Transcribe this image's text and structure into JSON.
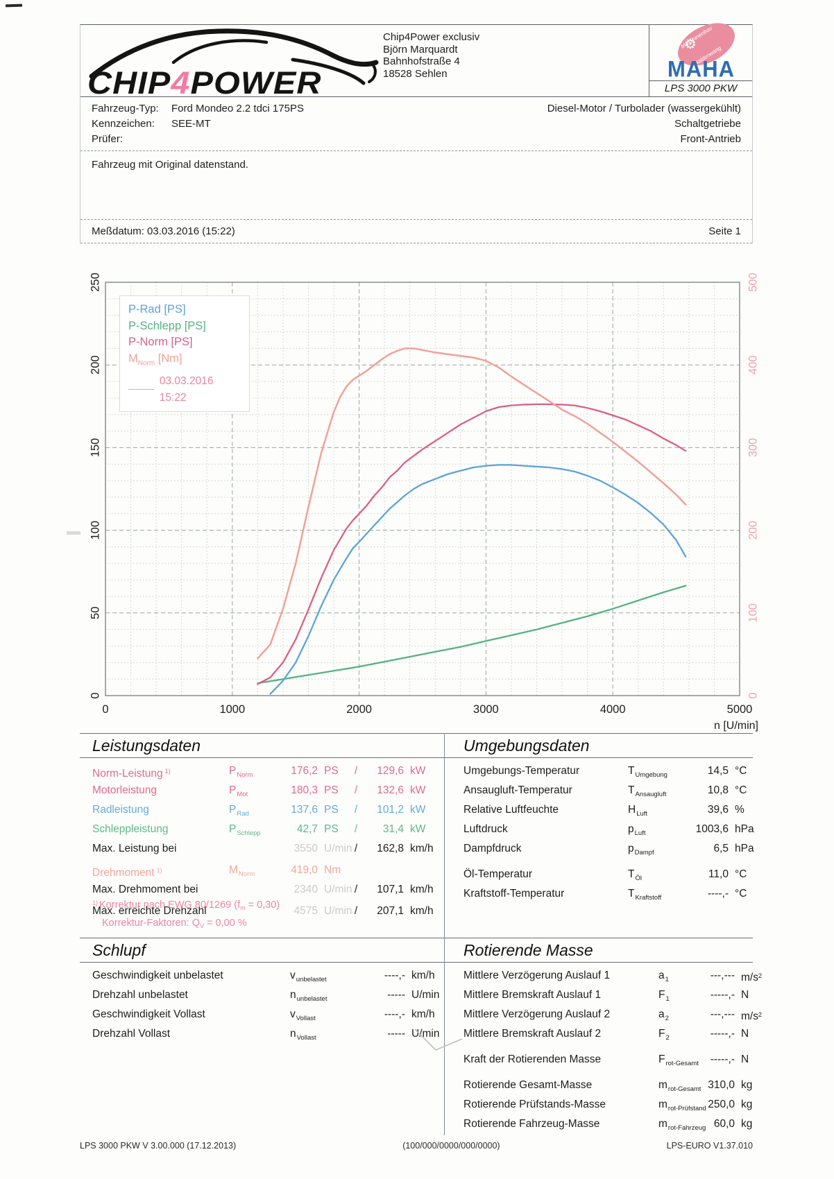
{
  "header": {
    "logo": {
      "text_pre": "CHIP",
      "text_num": "4",
      "text_post": "POWER",
      "num_color": "#f27ba6"
    },
    "contact": [
      "Chip4Power exclusiv",
      "Björn Marquardt",
      "Bahnhofstraße 4",
      "18528 Sehlen"
    ],
    "maha": {
      "oval_line1": "Maschinenbau",
      "oval_line2": "Haldenwang",
      "gear_icon": "gear-icon",
      "brand": "MAHA",
      "device": "LPS 3000 PKW",
      "brand_color": "#2f6cb3",
      "oval_color": "#ea8d9f"
    }
  },
  "vehicle": {
    "rows": [
      {
        "label": "Fahrzeug-Typ:",
        "value": "Ford Mondeo 2.2 tdci 175PS",
        "right": "Diesel-Motor / Turbolader (wassergekühlt)"
      },
      {
        "label": "Kennzeichen:",
        "value": "SEE-MT",
        "right": "Schaltgetriebe"
      },
      {
        "label": "Prüfer:",
        "value": "",
        "right": "Front-Antrieb"
      }
    ]
  },
  "comment": "Fahrzeug mit Original datenstand.",
  "measurement": {
    "date_label": "Meßdatum: 03.03.2016 (15:22)",
    "page_label": "Seite 1"
  },
  "chart_data": {
    "type": "line",
    "x_label": "n [U/min]",
    "x_range": [
      0,
      5000
    ],
    "y_left_range": [
      0,
      250
    ],
    "y_right_range": [
      0,
      500
    ],
    "x_ticks": [
      0,
      1000,
      2000,
      3000,
      4000,
      5000
    ],
    "y_left_ticks": [
      0,
      50,
      100,
      150,
      200,
      250
    ],
    "y_right_ticks": [
      0,
      100,
      200,
      300,
      400,
      500
    ],
    "grid": "on",
    "legend_position": "top-left",
    "legend_note": "03.03.2016 15:22",
    "series": [
      {
        "name": "P-Rad [PS]",
        "axis": "left",
        "color": "#5ba3d9",
        "points": [
          [
            1300,
            1
          ],
          [
            1350,
            5
          ],
          [
            1400,
            9
          ],
          [
            1500,
            20
          ],
          [
            1600,
            36
          ],
          [
            1700,
            54
          ],
          [
            1800,
            70
          ],
          [
            1900,
            83
          ],
          [
            1950,
            89
          ],
          [
            2000,
            93
          ],
          [
            2060,
            98
          ],
          [
            2120,
            103
          ],
          [
            2180,
            108
          ],
          [
            2240,
            113
          ],
          [
            2300,
            117
          ],
          [
            2360,
            121
          ],
          [
            2430,
            125
          ],
          [
            2500,
            128
          ],
          [
            2600,
            131
          ],
          [
            2700,
            134
          ],
          [
            2800,
            136
          ],
          [
            2900,
            138
          ],
          [
            3000,
            139
          ],
          [
            3100,
            139.5
          ],
          [
            3200,
            139.5
          ],
          [
            3300,
            139
          ],
          [
            3400,
            138.5
          ],
          [
            3500,
            138
          ],
          [
            3600,
            137
          ],
          [
            3700,
            135.5
          ],
          [
            3800,
            133
          ],
          [
            3900,
            130
          ],
          [
            4000,
            126
          ],
          [
            4100,
            121.5
          ],
          [
            4200,
            116.5
          ],
          [
            4300,
            110.5
          ],
          [
            4400,
            103.5
          ],
          [
            4500,
            94
          ],
          [
            4575,
            84
          ]
        ]
      },
      {
        "name": "P-Schlepp [PS]",
        "axis": "left",
        "color": "#53b282",
        "points": [
          [
            1200,
            7.5
          ],
          [
            1400,
            10
          ],
          [
            1600,
            12.5
          ],
          [
            1800,
            15
          ],
          [
            2000,
            17.5
          ],
          [
            2200,
            20.5
          ],
          [
            2400,
            23.5
          ],
          [
            2600,
            26.5
          ],
          [
            2800,
            29.5
          ],
          [
            3000,
            33
          ],
          [
            3200,
            36.5
          ],
          [
            3400,
            40
          ],
          [
            3600,
            44
          ],
          [
            3800,
            48
          ],
          [
            4000,
            52.5
          ],
          [
            4200,
            57.5
          ],
          [
            4400,
            62.5
          ],
          [
            4575,
            66.5
          ]
        ]
      },
      {
        "name": "P-Norm [PS]",
        "axis": "left",
        "color": "#d95f86",
        "points": [
          [
            1200,
            7
          ],
          [
            1300,
            11
          ],
          [
            1400,
            20
          ],
          [
            1500,
            34
          ],
          [
            1600,
            52
          ],
          [
            1700,
            71
          ],
          [
            1800,
            88
          ],
          [
            1900,
            101
          ],
          [
            1950,
            106
          ],
          [
            2000,
            110
          ],
          [
            2060,
            115
          ],
          [
            2120,
            121
          ],
          [
            2180,
            126
          ],
          [
            2240,
            132
          ],
          [
            2300,
            136
          ],
          [
            2360,
            141
          ],
          [
            2430,
            145
          ],
          [
            2500,
            149
          ],
          [
            2600,
            154
          ],
          [
            2700,
            159
          ],
          [
            2800,
            164
          ],
          [
            2900,
            168
          ],
          [
            3000,
            172
          ],
          [
            3100,
            174.5
          ],
          [
            3200,
            175.5
          ],
          [
            3300,
            176
          ],
          [
            3400,
            176.2
          ],
          [
            3500,
            176.2
          ],
          [
            3600,
            176
          ],
          [
            3700,
            175.5
          ],
          [
            3800,
            174
          ],
          [
            3900,
            172
          ],
          [
            4000,
            169.5
          ],
          [
            4100,
            167
          ],
          [
            4200,
            163.5
          ],
          [
            4300,
            160
          ],
          [
            4400,
            155.5
          ],
          [
            4500,
            151.5
          ],
          [
            4575,
            148
          ]
        ]
      },
      {
        "name": "M-Norm [Nm]",
        "name_pre": "M",
        "name_sub": "Norm",
        "name_post": " [Nm]",
        "axis": "right",
        "color": "#f0a199",
        "points": [
          [
            1200,
            45
          ],
          [
            1300,
            62
          ],
          [
            1400,
            105
          ],
          [
            1500,
            160
          ],
          [
            1600,
            228
          ],
          [
            1700,
            293
          ],
          [
            1800,
            343
          ],
          [
            1850,
            361
          ],
          [
            1900,
            374
          ],
          [
            1950,
            382
          ],
          [
            2000,
            387
          ],
          [
            2060,
            393
          ],
          [
            2120,
            400
          ],
          [
            2180,
            407
          ],
          [
            2240,
            413
          ],
          [
            2300,
            417
          ],
          [
            2360,
            420
          ],
          [
            2430,
            420
          ],
          [
            2500,
            418
          ],
          [
            2600,
            415
          ],
          [
            2700,
            413
          ],
          [
            2800,
            411
          ],
          [
            2900,
            409
          ],
          [
            3000,
            405
          ],
          [
            3100,
            397
          ],
          [
            3200,
            386
          ],
          [
            3300,
            376
          ],
          [
            3400,
            366
          ],
          [
            3500,
            356
          ],
          [
            3600,
            346
          ],
          [
            3700,
            338
          ],
          [
            3800,
            329
          ],
          [
            3900,
            318
          ],
          [
            4000,
            307
          ],
          [
            4100,
            295
          ],
          [
            4200,
            283
          ],
          [
            4300,
            270
          ],
          [
            4400,
            257
          ],
          [
            4500,
            243
          ],
          [
            4575,
            231
          ]
        ]
      }
    ]
  },
  "leistungsdaten": {
    "title": "Leistungsdaten",
    "groups": [
      {
        "rows": [
          {
            "label": "Norm-Leistung",
            "fn": "1)",
            "color": "pink",
            "sym": "P",
            "sub": "Norm",
            "v1": "176,2",
            "u1": "PS",
            "v2": "129,6",
            "u2": "kW"
          },
          {
            "label": "Motorleistung",
            "color": "pink",
            "sym": "P",
            "sub": "Mot",
            "v1": "180,3",
            "u1": "PS",
            "v2": "132,6",
            "u2": "kW"
          },
          {
            "label": "Radleistung",
            "color": "blue",
            "sym": "P",
            "sub": "Rad",
            "v1": "137,6",
            "u1": "PS",
            "v2": "101,2",
            "u2": "kW"
          },
          {
            "label": "Schleppleistung",
            "color": "green",
            "sym": "P",
            "sub": "Schlepp",
            "v1": "42,7",
            "u1": "PS",
            "v2": "31,4",
            "u2": "kW"
          },
          {
            "label": "Max. Leistung bei",
            "v1": "3550",
            "u1": "U/min",
            "g1": true,
            "v2": "162,8",
            "u2": "km/h"
          }
        ]
      },
      {
        "rows": [
          {
            "label": "Drehmoment",
            "fn": "1)",
            "color": "salmon",
            "sym": "M",
            "sub": "Norm",
            "v1": "419,0",
            "u1": "Nm"
          },
          {
            "label": "Max. Drehmoment bei",
            "v1": "2340",
            "u1": "U/min",
            "g1": true,
            "v2": "107,1",
            "u2": "km/h"
          }
        ]
      },
      {
        "rows": [
          {
            "label": "Max. erreichte Drehzahl",
            "v1": "4575",
            "u1": "U/min",
            "g1": true,
            "v2": "207,1",
            "u2": "km/h"
          }
        ]
      }
    ]
  },
  "umgebungsdaten": {
    "title": "Umgebungsdaten",
    "groups": [
      {
        "rows": [
          {
            "label": "Umgebungs-Temperatur",
            "sym": "T",
            "sub": "Umgebung",
            "v1": "14,5",
            "u1": "°C"
          },
          {
            "label": "Ansaugluft-Temperatur",
            "sym": "T",
            "sub": "Ansaugluft",
            "v1": "10,8",
            "u1": "°C"
          },
          {
            "label": "Relative Luftfeuchte",
            "sym": "H",
            "sub": "Luft",
            "v1": "39,6",
            "u1": "%"
          },
          {
            "label": "Luftdruck",
            "sym": "p",
            "sub": "Luft",
            "v1": "1003,6",
            "u1": "hPa"
          },
          {
            "label": "Dampfdruck",
            "sym": "p",
            "sub": "Dampf",
            "v1": "6,5",
            "u1": "hPa"
          }
        ]
      },
      {
        "rows": [
          {
            "label": "Öl-Temperatur",
            "sym": "T",
            "sub": "Öl",
            "v1": "11,0",
            "u1": "°C"
          },
          {
            "label": "Kraftstoff-Temperatur",
            "sym": "T",
            "sub": "Kraftstoff",
            "v1": "----,-",
            "u1": "°C"
          }
        ]
      }
    ]
  },
  "footnotes": [
    {
      "marker": "1)",
      "pre": "Korrektur nach EWG 80/1269 (f",
      "sub": "m",
      "post": " =  0,30)"
    },
    {
      "marker": "",
      "pre": "Korrektur-Faktoren: Q",
      "sub": "V",
      "post": " =   0,00 %"
    }
  ],
  "schlupf": {
    "title": "Schlupf",
    "groups": [
      {
        "rows": [
          {
            "label": "Geschwindigkeit unbelastet",
            "sym": "v",
            "sub": "unbelastet",
            "v1": "----,-",
            "u1": "km/h"
          },
          {
            "label": "Drehzahl unbelastet",
            "sym": "n",
            "sub": "unbelastet",
            "v1": "-----",
            "u1": "U/min"
          },
          {
            "label": "Geschwindigkeit Vollast",
            "sym": "v",
            "sub": "Vollast",
            "v1": "----,-",
            "u1": "km/h"
          },
          {
            "label": "Drehzahl Vollast",
            "sym": "n",
            "sub": "Vollast",
            "v1": "-----",
            "u1": "U/min"
          }
        ]
      }
    ]
  },
  "rotierende_masse": {
    "title": "Rotierende Masse",
    "groups": [
      {
        "rows": [
          {
            "label": "Mittlere Verzögerung Auslauf 1",
            "sym": "a",
            "sub": "1",
            "v1": "---,---",
            "u1": "m/s",
            "us": "2"
          },
          {
            "label": "Mittlere Bremskraft Auslauf 1",
            "sym": "F",
            "sub": "1",
            "v1": "-----,-",
            "u1": "N"
          },
          {
            "label": "Mittlere Verzögerung Auslauf 2",
            "sym": "a",
            "sub": "2",
            "v1": "---,---",
            "u1": "m/s",
            "us": "2"
          },
          {
            "label": "Mittlere Bremskraft Auslauf 2",
            "sym": "F",
            "sub": "2",
            "v1": "-----,-",
            "u1": "N"
          }
        ]
      },
      {
        "rows": [
          {
            "label": "Kraft der Rotierenden Masse",
            "sym": "F",
            "sub": "rot-Gesamt",
            "v1": "-----,-",
            "u1": "N"
          }
        ]
      },
      {
        "rows": [
          {
            "label": "Rotierende Gesamt-Masse",
            "sym": "m",
            "sub": "rot-Gesamt",
            "v1": "310,0",
            "u1": "kg"
          },
          {
            "label": "Rotierende Prüfstands-Masse",
            "sym": "m",
            "sub": "rot-Prüfstand",
            "v1": "250,0",
            "u1": "kg"
          },
          {
            "label": "Rotierende Fahrzeug-Masse",
            "sym": "m",
            "sub": "rot-Fahrzeug",
            "v1": "60,0",
            "u1": "kg"
          }
        ]
      }
    ]
  },
  "footer": {
    "left": "LPS 3000 PKW V 3.00.000 (17.12.2013)",
    "center": "(100/000/0000/000/0000)",
    "right": "LPS-EURO V1.37.010"
  }
}
